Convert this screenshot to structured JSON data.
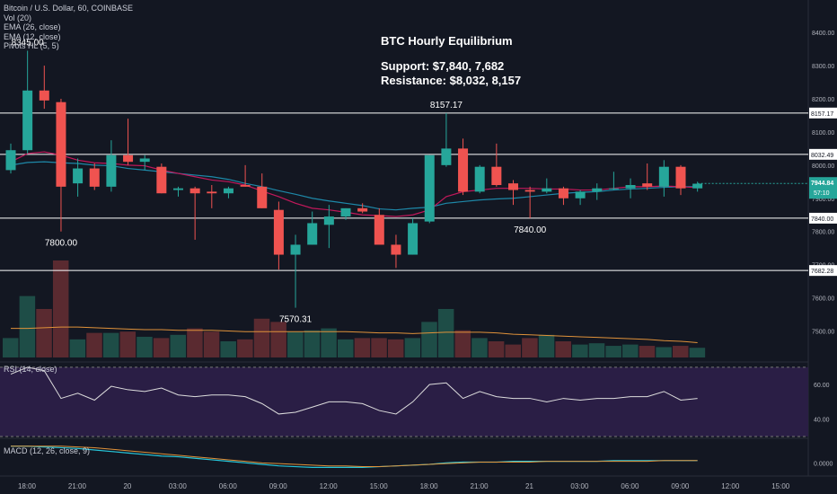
{
  "legend": {
    "symbol": "Bitcoin / U.S. Dollar, 60, COINBASE",
    "vol": "Vol (20)",
    "ema1": "EMA (26, close)",
    "ema2": "EMA (12, close)",
    "pivots": "Pivots HL (5, 5)"
  },
  "annotation": {
    "title": "BTC Hourly Equilibrium",
    "support": "Support: $7,840, 7,682",
    "resistance": "Resistance: $8,032, 8,157"
  },
  "rsi_label": "RSI (14, close)",
  "macd_label": "MACD (12, 26, close, 9)",
  "colors": {
    "background": "#131722",
    "up": "#26a69a",
    "down": "#ef5350",
    "ema_slow": "#1e88a8",
    "ema_fast": "#c2185b",
    "vol_ma": "#e0923a",
    "rsi": "#dddddd",
    "rsi_band": "#2a1e45",
    "macd": "#26c6da",
    "signal": "#e0923a",
    "level_line": "#ffffff"
  },
  "chart_data": {
    "type": "candlestick",
    "price_axis": {
      "ylim": [
        7420,
        8460
      ],
      "ticks": [
        "8400.00",
        "8300.00",
        "8200.00",
        "8100.00",
        "8000.00",
        "7900.00",
        "7800.00",
        "7700.00",
        "7600.00",
        "7500.00"
      ],
      "tick_values": [
        8400,
        8300,
        8200,
        8100,
        8000,
        7900,
        7800,
        7700,
        7600,
        7500
      ]
    },
    "time_axis": {
      "labels": [
        "18:00",
        "21:00",
        "20",
        "03:00",
        "06:00",
        "09:00",
        "12:00",
        "15:00",
        "18:00",
        "21:00",
        "21",
        "03:00",
        "06:00",
        "09:00",
        "12:00",
        "15:00"
      ],
      "label_bars": [
        0,
        3,
        6,
        9,
        12,
        15,
        18,
        21,
        24,
        27,
        30,
        33,
        36,
        39,
        42,
        45
      ]
    },
    "candles": [
      {
        "o": 7985,
        "h": 8065,
        "l": 7975,
        "c": 8045
      },
      {
        "o": 8045,
        "h": 8345,
        "l": 8035,
        "c": 8225
      },
      {
        "o": 8225,
        "h": 8300,
        "l": 8170,
        "c": 8195
      },
      {
        "o": 8190,
        "h": 8200,
        "l": 7800,
        "c": 7935
      },
      {
        "o": 7945,
        "h": 8020,
        "l": 7905,
        "c": 7990
      },
      {
        "o": 7990,
        "h": 8005,
        "l": 7925,
        "c": 7935
      },
      {
        "o": 7935,
        "h": 8075,
        "l": 7920,
        "c": 8030
      },
      {
        "o": 8030,
        "h": 8140,
        "l": 8000,
        "c": 8010
      },
      {
        "o": 8010,
        "h": 8030,
        "l": 7985,
        "c": 8020
      },
      {
        "o": 7995,
        "h": 8005,
        "l": 7915,
        "c": 7915
      },
      {
        "o": 7925,
        "h": 7935,
        "l": 7905,
        "c": 7930
      },
      {
        "o": 7930,
        "h": 7935,
        "l": 7775,
        "c": 7915
      },
      {
        "o": 7920,
        "h": 7940,
        "l": 7870,
        "c": 7915
      },
      {
        "o": 7915,
        "h": 7935,
        "l": 7900,
        "c": 7930
      },
      {
        "o": 7940,
        "h": 8000,
        "l": 7935,
        "c": 7935
      },
      {
        "o": 7935,
        "h": 7975,
        "l": 7870,
        "c": 7870
      },
      {
        "o": 7865,
        "h": 7890,
        "l": 7685,
        "c": 7730
      },
      {
        "o": 7730,
        "h": 7790,
        "l": 7570,
        "c": 7760
      },
      {
        "o": 7760,
        "h": 7860,
        "l": 7760,
        "c": 7825
      },
      {
        "o": 7820,
        "h": 7880,
        "l": 7750,
        "c": 7845
      },
      {
        "o": 7845,
        "h": 7870,
        "l": 7835,
        "c": 7870
      },
      {
        "o": 7870,
        "h": 7885,
        "l": 7855,
        "c": 7860
      },
      {
        "o": 7850,
        "h": 7870,
        "l": 7765,
        "c": 7760
      },
      {
        "o": 7760,
        "h": 7790,
        "l": 7690,
        "c": 7730
      },
      {
        "o": 7730,
        "h": 7840,
        "l": 7730,
        "c": 7825
      },
      {
        "o": 7830,
        "h": 8030,
        "l": 7825,
        "c": 8030
      },
      {
        "o": 8000,
        "h": 8157,
        "l": 7995,
        "c": 8050
      },
      {
        "o": 8050,
        "h": 8080,
        "l": 7910,
        "c": 7920
      },
      {
        "o": 7920,
        "h": 8000,
        "l": 7915,
        "c": 7995
      },
      {
        "o": 7995,
        "h": 8065,
        "l": 7935,
        "c": 7940
      },
      {
        "o": 7945,
        "h": 7955,
        "l": 7880,
        "c": 7925
      },
      {
        "o": 7925,
        "h": 7935,
        "l": 7840,
        "c": 7920
      },
      {
        "o": 7920,
        "h": 7960,
        "l": 7915,
        "c": 7930
      },
      {
        "o": 7930,
        "h": 7935,
        "l": 7880,
        "c": 7900
      },
      {
        "o": 7900,
        "h": 7925,
        "l": 7880,
        "c": 7920
      },
      {
        "o": 7920,
        "h": 7945,
        "l": 7895,
        "c": 7930
      },
      {
        "o": 7930,
        "h": 7980,
        "l": 7925,
        "c": 7930
      },
      {
        "o": 7930,
        "h": 7960,
        "l": 7900,
        "c": 7940
      },
      {
        "o": 7945,
        "h": 8005,
        "l": 7925,
        "c": 7935
      },
      {
        "o": 7935,
        "h": 8015,
        "l": 7905,
        "c": 7995
      },
      {
        "o": 7995,
        "h": 8000,
        "l": 7910,
        "c": 7930
      },
      {
        "o": 7930,
        "h": 7950,
        "l": 7920,
        "c": 7944
      }
    ],
    "ema26": [
      8000,
      8008,
      8010,
      8007,
      8005,
      8000,
      7998,
      7990,
      7985,
      7980,
      7975,
      7970,
      7965,
      7957,
      7945,
      7935,
      7923,
      7912,
      7900,
      7892,
      7885,
      7878,
      7868,
      7865,
      7870,
      7873,
      7885,
      7890,
      7895,
      7898,
      7900,
      7905,
      7910,
      7915,
      7918,
      7920,
      7925,
      7928,
      7930,
      7933,
      7935,
      7935
    ],
    "ema12": [
      8010,
      8035,
      8040,
      8030,
      8015,
      8007,
      8005,
      8000,
      7998,
      7985,
      7975,
      7965,
      7955,
      7950,
      7940,
      7922,
      7905,
      7885,
      7870,
      7865,
      7858,
      7850,
      7848,
      7845,
      7850,
      7865,
      7905,
      7920,
      7925,
      7930,
      7930,
      7930,
      7928,
      7928,
      7925,
      7925,
      7930,
      7935,
      7935,
      7937,
      7935,
      7932
    ],
    "level_lines": [
      {
        "value": 8157.17,
        "label": "8157.17"
      },
      {
        "value": 8032.49,
        "label": "8032.49"
      },
      {
        "value": 7840.0,
        "label": "7840.00"
      },
      {
        "value": 7682.28,
        "label": "7682.28"
      }
    ],
    "last_price": {
      "value": 7944.84,
      "label": "7944.84",
      "countdown": "57:10"
    },
    "pivots": [
      {
        "label": "8345.00",
        "bar": 1,
        "value": 8345,
        "kind": "high"
      },
      {
        "label": "7800.00",
        "bar": 3,
        "value": 7800,
        "kind": "low"
      },
      {
        "label": "7570.31",
        "bar": 17,
        "value": 7570,
        "kind": "low"
      },
      {
        "label": "8157.17",
        "bar": 26,
        "value": 8157,
        "kind": "high"
      },
      {
        "label": "7840.00",
        "bar": 31,
        "value": 7840,
        "kind": "low"
      }
    ],
    "volume": [
      30,
      95,
      75,
      150,
      28,
      38,
      38,
      40,
      32,
      30,
      35,
      45,
      40,
      25,
      28,
      60,
      55,
      40,
      42,
      45,
      28,
      30,
      30,
      28,
      30,
      55,
      75,
      42,
      30,
      25,
      20,
      30,
      35,
      25,
      20,
      22,
      18,
      20,
      18,
      16,
      18,
      15
    ],
    "volume_ma": [
      45,
      45,
      46,
      47,
      47,
      46,
      45,
      44,
      43,
      43,
      42,
      42,
      42,
      41,
      40,
      40,
      40,
      40,
      40,
      40,
      40,
      39,
      38,
      38,
      37,
      38,
      39,
      39,
      39,
      38,
      36,
      35,
      34,
      33,
      32,
      31,
      30,
      29,
      28,
      26,
      25,
      23
    ],
    "rsi": {
      "ylim": [
        30,
        72
      ],
      "ticks": [
        "60.00",
        "40.00"
      ],
      "band": [
        30,
        70
      ],
      "values": [
        66,
        70,
        68,
        52,
        55,
        51,
        59,
        57,
        56,
        58,
        54,
        53,
        54,
        54,
        53,
        49,
        43,
        44,
        47,
        50,
        50,
        49,
        45,
        43,
        50,
        60,
        61,
        52,
        56,
        53,
        52,
        52,
        50,
        52,
        51,
        52,
        52,
        53,
        53,
        56,
        51,
        52
      ]
    },
    "macd": {
      "ylim": [
        -15,
        30
      ],
      "ticks": [
        "0.0000"
      ],
      "macd": [
        22,
        22,
        21,
        20,
        19,
        17,
        15,
        13,
        11,
        9,
        8,
        6,
        4,
        2,
        0,
        -2,
        -4,
        -5,
        -6,
        -6,
        -6,
        -6,
        -5,
        -4,
        -3,
        -2,
        0,
        1,
        1,
        1,
        2,
        2,
        2,
        2,
        2,
        2,
        3,
        3,
        3,
        3,
        3,
        3
      ],
      "signal": [
        22,
        22,
        22,
        22,
        21,
        20,
        18,
        16,
        14,
        12,
        10,
        8,
        6,
        4,
        2,
        0,
        -1,
        -2,
        -3,
        -4,
        -4,
        -5,
        -5,
        -4,
        -3,
        -2,
        -1,
        0,
        1,
        1,
        1,
        1,
        2,
        2,
        2,
        2,
        2,
        2,
        2,
        3,
        3,
        3
      ]
    }
  }
}
